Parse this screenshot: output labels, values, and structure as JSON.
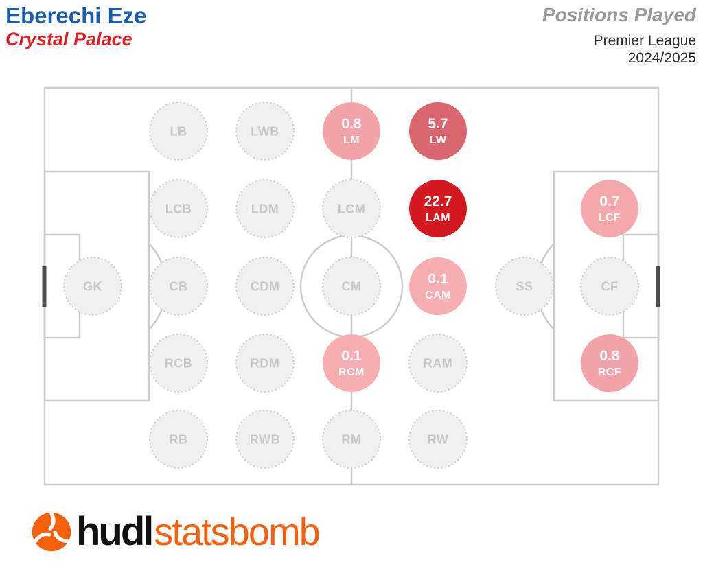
{
  "header": {
    "player": "Eberechi Eze",
    "team": "Crystal Palace",
    "report_title": "Positions Played",
    "competition": "Premier League",
    "season": "2024/2025"
  },
  "footer": {
    "brand_bold": "hudl",
    "brand_light": "statsbomb",
    "icon": "hudl-pinwheel-icon"
  },
  "colors": {
    "player_name": "#1B5BB2",
    "team_name": "#DD1F27",
    "report_title": "#9A9A9A",
    "header_subtitle": "#2B2B2B",
    "pitch_line": "#CCCCCC",
    "goal": "#4D4D4D",
    "empty_fill": "#F0F0F0",
    "empty_border": "#CBCBCB",
    "empty_label": "#C6C6C6",
    "circle_text": "#FFFFFF",
    "brand_orange": "#F4600C",
    "brand_black": "#111111"
  },
  "chart_data": {
    "type": "heatmap",
    "title": "Positions Played",
    "subtitle": "Premier League 2024/2025",
    "player": "Eberechi Eze",
    "team": "Crystal Palace",
    "layout": "horizontal football pitch, attacking left-to-right; 7 columns (GK, DEF, DM, MID, AM, SS, FWD) by 5 lanes; unplayed positions shown as dotted grey circles, played positions as red-shaded circles with value",
    "legend": "none",
    "positions": [
      {
        "code": "GK",
        "col": 0,
        "row": 2,
        "value": null
      },
      {
        "code": "LB",
        "col": 1,
        "row": 0,
        "value": null
      },
      {
        "code": "LCB",
        "col": 1,
        "row": 1,
        "value": null
      },
      {
        "code": "CB",
        "col": 1,
        "row": 2,
        "value": null
      },
      {
        "code": "RCB",
        "col": 1,
        "row": 3,
        "value": null
      },
      {
        "code": "RB",
        "col": 1,
        "row": 4,
        "value": null
      },
      {
        "code": "LWB",
        "col": 2,
        "row": 0,
        "value": null
      },
      {
        "code": "LDM",
        "col": 2,
        "row": 1,
        "value": null
      },
      {
        "code": "CDM",
        "col": 2,
        "row": 2,
        "value": null
      },
      {
        "code": "RDM",
        "col": 2,
        "row": 3,
        "value": null
      },
      {
        "code": "RWB",
        "col": 2,
        "row": 4,
        "value": null
      },
      {
        "code": "LM",
        "col": 3,
        "row": 0,
        "value": 0.8,
        "color": "#F2A3AA"
      },
      {
        "code": "LCM",
        "col": 3,
        "row": 1,
        "value": null
      },
      {
        "code": "CM",
        "col": 3,
        "row": 2,
        "value": null
      },
      {
        "code": "RCM",
        "col": 3,
        "row": 3,
        "value": 0.1,
        "color": "#F6AEB3"
      },
      {
        "code": "RM",
        "col": 3,
        "row": 4,
        "value": null
      },
      {
        "code": "LW",
        "col": 4,
        "row": 0,
        "value": 5.7,
        "color": "#D9656E"
      },
      {
        "code": "LAM",
        "col": 4,
        "row": 1,
        "value": 22.7,
        "color": "#D2191F"
      },
      {
        "code": "CAM",
        "col": 4,
        "row": 2,
        "value": 0.1,
        "color": "#F6AEB3"
      },
      {
        "code": "RAM",
        "col": 4,
        "row": 3,
        "value": null
      },
      {
        "code": "RW",
        "col": 4,
        "row": 4,
        "value": null
      },
      {
        "code": "SS",
        "col": 5,
        "row": 2,
        "value": null
      },
      {
        "code": "LCF",
        "col": 6,
        "row": 1,
        "value": 0.7,
        "color": "#F3A8AE"
      },
      {
        "code": "CF",
        "col": 6,
        "row": 2,
        "value": null
      },
      {
        "code": "RCF",
        "col": 6,
        "row": 3,
        "value": 0.8,
        "color": "#F2A3AA"
      }
    ]
  }
}
